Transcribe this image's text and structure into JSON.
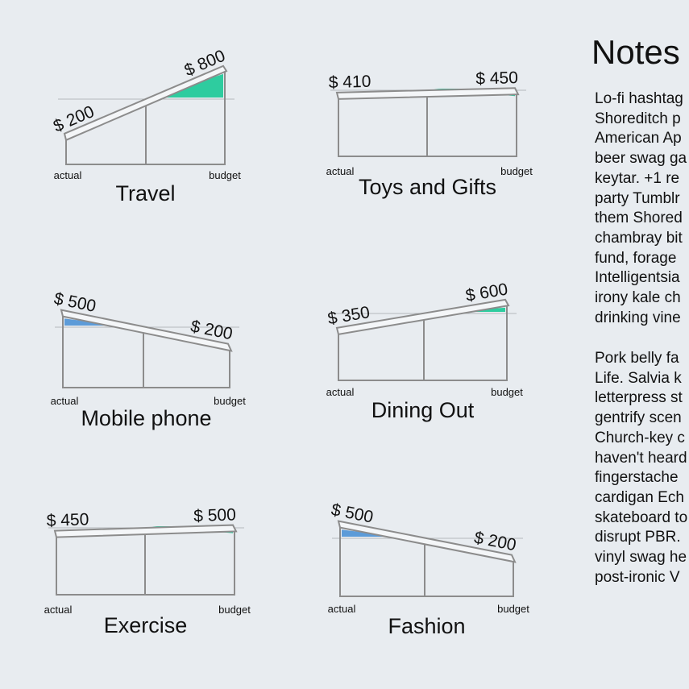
{
  "colors": {
    "frame": "#8c8c8c",
    "over_budget_fill": "#5c9bd8",
    "under_budget_fill": "#2ecc9f",
    "background": "#e8ecf0"
  },
  "labels": {
    "actual": "actual",
    "budget": "budget",
    "currency": "$"
  },
  "diagram_data": [
    {
      "name": "Travel",
      "actual": 200,
      "budget": 800
    },
    {
      "name": "Toys and Gifts",
      "actual": 410,
      "budget": 450
    },
    {
      "name": "Mobile phone",
      "actual": 500,
      "budget": 200
    },
    {
      "name": "Dining Out",
      "actual": 350,
      "budget": 600
    },
    {
      "name": "Exercise",
      "actual": 450,
      "budget": 500
    },
    {
      "name": "Fashion",
      "actual": 500,
      "budget": 200
    }
  ],
  "notes": {
    "title": "Notes",
    "paragraph_1_lines": [
      "Lo-fi hashtag",
      "Shoreditch p",
      "American Ap",
      "beer swag ga",
      "keytar. +1 re",
      "party Tumblr",
      "them Shored",
      "chambray bit",
      "fund, forage",
      "Intelligentsia",
      "irony kale ch",
      "drinking vine"
    ],
    "paragraph_2_lines": [
      "Pork belly fa",
      "Life. Salvia k",
      "letterpress st",
      "gentrify scen",
      "Church-key c",
      "haven't heard",
      "fingerstache",
      "cardigan Ech",
      "skateboard to",
      "disrupt PBR.",
      "vinyl swag he",
      "post-ironic V"
    ]
  }
}
